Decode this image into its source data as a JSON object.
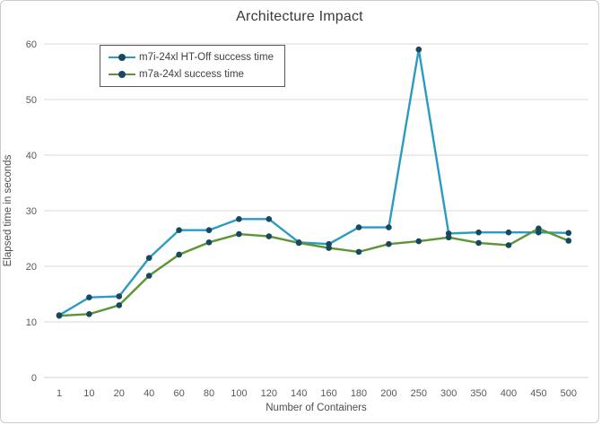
{
  "chart_data": {
    "type": "line",
    "title": "Architecture Impact",
    "xlabel": "Number of Containers",
    "ylabel": "Elapsed time in seconds",
    "categories": [
      "1",
      "10",
      "20",
      "40",
      "60",
      "80",
      "100",
      "120",
      "140",
      "160",
      "180",
      "200",
      "250",
      "300",
      "350",
      "400",
      "450",
      "500"
    ],
    "yticks": [
      0,
      10,
      20,
      30,
      40,
      50,
      60
    ],
    "ylim": [
      0,
      60
    ],
    "grid": true,
    "legend_position": "top-left-inside",
    "series": [
      {
        "name": "m7i-24xl HT-Off success time",
        "color": "#2b9bc4",
        "marker_color": "#16495e",
        "values": [
          11.2,
          14.4,
          14.6,
          21.5,
          26.5,
          26.5,
          28.5,
          28.5,
          24.3,
          24.0,
          27.0,
          27.0,
          59.0,
          25.9,
          26.1,
          26.1,
          26.1,
          26.0
        ]
      },
      {
        "name": "m7a-24xl success time",
        "color": "#5f9435",
        "marker_color": "#16495e",
        "values": [
          11.1,
          11.4,
          13.0,
          18.3,
          22.1,
          24.3,
          25.8,
          25.4,
          24.2,
          23.3,
          22.6,
          24.0,
          24.5,
          25.2,
          24.2,
          23.8,
          26.8,
          24.6
        ]
      }
    ]
  },
  "colors": {
    "grid": "#d9d9d9",
    "axis_line": "#d0d0d0",
    "tick_text": "#595959",
    "title_text": "#3a3a3a",
    "legend_border": "#595959",
    "frame_border": "#c9ccd1"
  }
}
